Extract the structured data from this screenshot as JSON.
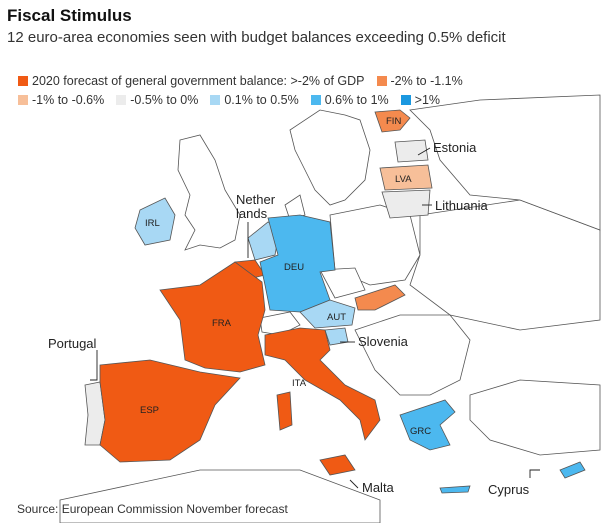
{
  "header": {
    "title": "Fiscal Stimulus",
    "subtitle": "12 euro-area economies seen with budget balances exceeding 0.5% deficit"
  },
  "legend": [
    {
      "label": "2020 forecast of general government balance: >-2% of GDP",
      "color": "#f05a14"
    },
    {
      "label": "-2% to -1.1%",
      "color": "#f48a4e"
    },
    {
      "label": "-1% to -0.6%",
      "color": "#f7bf99"
    },
    {
      "label": "-0.5% to 0%",
      "color": "#ececec"
    },
    {
      "label": "0.1% to 0.5%",
      "color": "#a8d8f4"
    },
    {
      "label": "0.6% to 1%",
      "color": "#4cb8ef"
    },
    {
      "label": ">1%",
      "color": "#1b98e0"
    }
  ],
  "map": {
    "codes": {
      "fin": "FIN",
      "lva": "LVA",
      "irl": "IRL",
      "deu": "DEU",
      "fra": "FRA",
      "aut": "AUT",
      "ita": "ITA",
      "esp": "ESP",
      "grc": "GRC"
    },
    "callouts": {
      "estonia": "Estonia",
      "lithuania": "Lithuania",
      "netherlands_1": "Nether",
      "netherlands_2": "lands",
      "slovenia": "Slovenia",
      "portugal": "Portugal",
      "malta": "Malta",
      "cyprus": "Cyprus"
    }
  },
  "source": "Source: European Commission November forecast"
}
